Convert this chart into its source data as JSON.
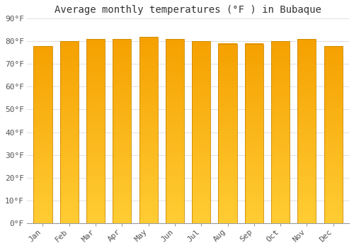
{
  "title": "Average monthly temperatures (°F ) in Bubaque",
  "months": [
    "Jan",
    "Feb",
    "Mar",
    "Apr",
    "May",
    "Jun",
    "Jul",
    "Aug",
    "Sep",
    "Oct",
    "Nov",
    "Dec"
  ],
  "values": [
    78,
    80,
    81,
    81,
    82,
    81,
    80,
    79,
    79,
    80,
    81,
    78
  ],
  "ylim": [
    0,
    90
  ],
  "yticks": [
    0,
    10,
    20,
    30,
    40,
    50,
    60,
    70,
    80,
    90
  ],
  "ytick_labels": [
    "0°F",
    "10°F",
    "20°F",
    "30°F",
    "40°F",
    "50°F",
    "60°F",
    "70°F",
    "80°F",
    "90°F"
  ],
  "bar_color_bottom": "#FFCC33",
  "bar_color_top": "#F5A000",
  "bar_edge_color": "#CC8800",
  "background_color": "#FFFFFF",
  "plot_bg_color": "#FFFFFF",
  "grid_color": "#E0E0E0",
  "title_fontsize": 10,
  "tick_fontsize": 8,
  "bar_width": 0.7,
  "n_grad": 80
}
